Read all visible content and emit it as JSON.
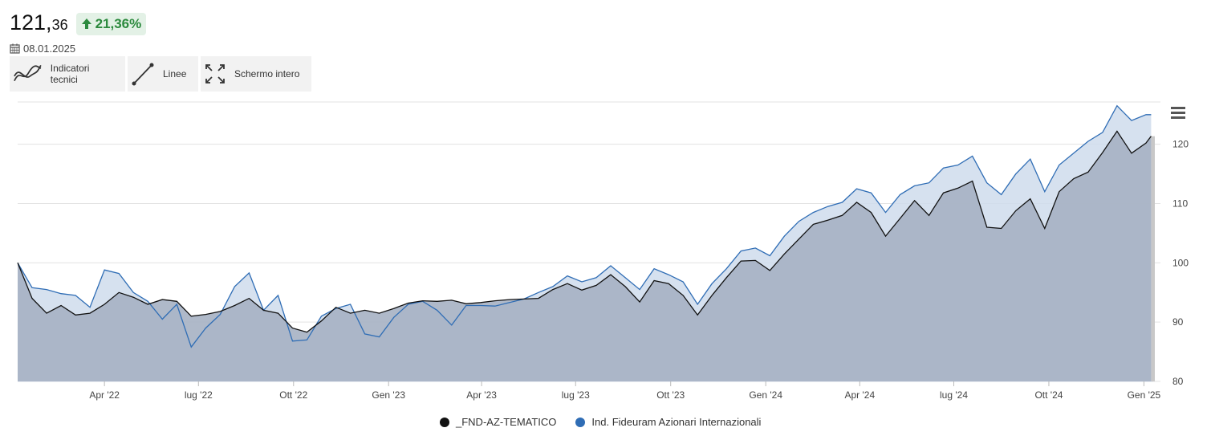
{
  "header": {
    "price_int": "121,",
    "price_dec": "36",
    "change": "21,36%",
    "date": "08.01.2025"
  },
  "toolbar": {
    "indicators_label": "Indicatori tecnici",
    "lines_label": "Linee",
    "fullscreen_label": "Schermo intero"
  },
  "colors": {
    "fund": "#111111",
    "index": "#2f6db5",
    "index_fill": "#cfdcec",
    "fund_fill": "#a6b1c3",
    "badge_text": "#2c8a3e",
    "badge_bg": "#e3f1e6"
  },
  "chart_data": {
    "type": "area",
    "title": "",
    "xlabel": "",
    "ylabel": "",
    "y_axis_position": "right",
    "ylim": [
      80,
      127
    ],
    "yticks": [
      80,
      90,
      100,
      110,
      120
    ],
    "xlim": [
      "2022-01-07",
      "2025-01-10"
    ],
    "xticks": [
      {
        "date": "2022-04-01",
        "label": "Apr '22"
      },
      {
        "date": "2022-07-01",
        "label": "lug '22"
      },
      {
        "date": "2022-10-01",
        "label": "Ott '22"
      },
      {
        "date": "2023-01-01",
        "label": "Gen '23"
      },
      {
        "date": "2023-04-01",
        "label": "Apr '23"
      },
      {
        "date": "2023-07-01",
        "label": "lug '23"
      },
      {
        "date": "2023-10-01",
        "label": "Ott '23"
      },
      {
        "date": "2024-01-01",
        "label": "Gen '24"
      },
      {
        "date": "2024-04-01",
        "label": "Apr '24"
      },
      {
        "date": "2024-07-01",
        "label": "lug '24"
      },
      {
        "date": "2024-10-01",
        "label": "Ott '24"
      },
      {
        "date": "2025-01-01",
        "label": "Gen '25"
      }
    ],
    "grid": true,
    "legend_position": "bottom-center",
    "series": [
      {
        "name": "_FND-AZ-TEMATICO",
        "points": [
          [
            "2022-01-07",
            100.0
          ],
          [
            "2022-01-21",
            94.0
          ],
          [
            "2022-02-04",
            91.5
          ],
          [
            "2022-02-18",
            92.8
          ],
          [
            "2022-03-04",
            91.2
          ],
          [
            "2022-03-18",
            91.5
          ],
          [
            "2022-04-01",
            93.0
          ],
          [
            "2022-04-15",
            95.0
          ],
          [
            "2022-04-29",
            94.2
          ],
          [
            "2022-05-13",
            93.0
          ],
          [
            "2022-05-27",
            93.8
          ],
          [
            "2022-06-10",
            93.5
          ],
          [
            "2022-06-24",
            91.0
          ],
          [
            "2022-07-08",
            91.3
          ],
          [
            "2022-07-22",
            91.8
          ],
          [
            "2022-08-05",
            92.8
          ],
          [
            "2022-08-19",
            94.0
          ],
          [
            "2022-09-02",
            92.0
          ],
          [
            "2022-09-16",
            91.5
          ],
          [
            "2022-09-30",
            89.0
          ],
          [
            "2022-10-14",
            88.3
          ],
          [
            "2022-10-28",
            90.2
          ],
          [
            "2022-11-11",
            92.5
          ],
          [
            "2022-11-25",
            91.5
          ],
          [
            "2022-12-09",
            92.0
          ],
          [
            "2022-12-23",
            91.5
          ],
          [
            "2023-01-06",
            92.3
          ],
          [
            "2023-01-20",
            93.2
          ],
          [
            "2023-02-03",
            93.6
          ],
          [
            "2023-02-17",
            93.5
          ],
          [
            "2023-03-03",
            93.7
          ],
          [
            "2023-03-17",
            93.1
          ],
          [
            "2023-03-31",
            93.3
          ],
          [
            "2023-04-14",
            93.6
          ],
          [
            "2023-04-28",
            93.8
          ],
          [
            "2023-05-12",
            93.9
          ],
          [
            "2023-05-26",
            94.0
          ],
          [
            "2023-06-09",
            95.5
          ],
          [
            "2023-06-23",
            96.5
          ],
          [
            "2023-07-07",
            95.4
          ],
          [
            "2023-07-21",
            96.2
          ],
          [
            "2023-08-04",
            98.0
          ],
          [
            "2023-08-18",
            96.0
          ],
          [
            "2023-09-01",
            93.4
          ],
          [
            "2023-09-15",
            97.0
          ],
          [
            "2023-09-29",
            96.5
          ],
          [
            "2023-10-13",
            94.5
          ],
          [
            "2023-10-27",
            91.2
          ],
          [
            "2023-11-10",
            94.5
          ],
          [
            "2023-11-24",
            97.5
          ],
          [
            "2023-12-08",
            100.3
          ],
          [
            "2023-12-22",
            100.4
          ],
          [
            "2024-01-05",
            98.7
          ],
          [
            "2024-01-19",
            101.5
          ],
          [
            "2024-02-02",
            104.0
          ],
          [
            "2024-02-16",
            106.5
          ],
          [
            "2024-03-01",
            107.2
          ],
          [
            "2024-03-15",
            108.0
          ],
          [
            "2024-03-29",
            110.2
          ],
          [
            "2024-04-12",
            108.5
          ],
          [
            "2024-04-26",
            104.5
          ],
          [
            "2024-05-10",
            107.5
          ],
          [
            "2024-05-24",
            110.5
          ],
          [
            "2024-06-07",
            108.0
          ],
          [
            "2024-06-21",
            111.8
          ],
          [
            "2024-07-05",
            112.6
          ],
          [
            "2024-07-19",
            113.8
          ],
          [
            "2024-08-02",
            106.0
          ],
          [
            "2024-08-16",
            105.8
          ],
          [
            "2024-08-30",
            108.8
          ],
          [
            "2024-09-13",
            110.8
          ],
          [
            "2024-09-27",
            105.8
          ],
          [
            "2024-10-11",
            112.0
          ],
          [
            "2024-10-25",
            114.2
          ],
          [
            "2024-11-08",
            115.3
          ],
          [
            "2024-11-22",
            118.6
          ],
          [
            "2024-12-06",
            122.2
          ],
          [
            "2024-12-20",
            118.5
          ],
          [
            "2025-01-03",
            120.2
          ],
          [
            "2025-01-08",
            121.36
          ]
        ]
      },
      {
        "name": "Ind. Fideuram Azionari Internazionali",
        "points": [
          [
            "2022-01-07",
            100.0
          ],
          [
            "2022-01-21",
            95.8
          ],
          [
            "2022-02-04",
            95.5
          ],
          [
            "2022-02-18",
            94.8
          ],
          [
            "2022-03-04",
            94.5
          ],
          [
            "2022-03-18",
            92.5
          ],
          [
            "2022-04-01",
            98.8
          ],
          [
            "2022-04-15",
            98.2
          ],
          [
            "2022-04-29",
            95.0
          ],
          [
            "2022-05-13",
            93.5
          ],
          [
            "2022-05-27",
            90.5
          ],
          [
            "2022-06-10",
            93.0
          ],
          [
            "2022-06-24",
            85.8
          ],
          [
            "2022-07-08",
            89.0
          ],
          [
            "2022-07-22",
            91.3
          ],
          [
            "2022-08-05",
            96.0
          ],
          [
            "2022-08-19",
            98.3
          ],
          [
            "2022-09-02",
            92.0
          ],
          [
            "2022-09-16",
            94.5
          ],
          [
            "2022-09-30",
            86.8
          ],
          [
            "2022-10-14",
            87.0
          ],
          [
            "2022-10-28",
            91.0
          ],
          [
            "2022-11-11",
            92.3
          ],
          [
            "2022-11-25",
            93.0
          ],
          [
            "2022-12-09",
            88.0
          ],
          [
            "2022-12-23",
            87.5
          ],
          [
            "2023-01-06",
            90.8
          ],
          [
            "2023-01-20",
            93.0
          ],
          [
            "2023-02-03",
            93.5
          ],
          [
            "2023-02-17",
            92.0
          ],
          [
            "2023-03-03",
            89.5
          ],
          [
            "2023-03-17",
            92.8
          ],
          [
            "2023-03-31",
            92.8
          ],
          [
            "2023-04-14",
            92.7
          ],
          [
            "2023-04-28",
            93.3
          ],
          [
            "2023-05-12",
            93.9
          ],
          [
            "2023-05-26",
            95.0
          ],
          [
            "2023-06-09",
            96.0
          ],
          [
            "2023-06-23",
            97.8
          ],
          [
            "2023-07-07",
            96.8
          ],
          [
            "2023-07-21",
            97.5
          ],
          [
            "2023-08-04",
            99.5
          ],
          [
            "2023-08-18",
            97.5
          ],
          [
            "2023-09-01",
            95.5
          ],
          [
            "2023-09-15",
            99.0
          ],
          [
            "2023-09-29",
            98.0
          ],
          [
            "2023-10-13",
            96.8
          ],
          [
            "2023-10-27",
            93.0
          ],
          [
            "2023-11-10",
            96.5
          ],
          [
            "2023-11-24",
            99.0
          ],
          [
            "2023-12-08",
            102.0
          ],
          [
            "2023-12-22",
            102.5
          ],
          [
            "2024-01-05",
            101.2
          ],
          [
            "2024-01-19",
            104.5
          ],
          [
            "2024-02-02",
            107.0
          ],
          [
            "2024-02-16",
            108.5
          ],
          [
            "2024-03-01",
            109.5
          ],
          [
            "2024-03-15",
            110.2
          ],
          [
            "2024-03-29",
            112.5
          ],
          [
            "2024-04-12",
            111.8
          ],
          [
            "2024-04-26",
            108.5
          ],
          [
            "2024-05-10",
            111.5
          ],
          [
            "2024-05-24",
            113.0
          ],
          [
            "2024-06-07",
            113.5
          ],
          [
            "2024-06-21",
            116.0
          ],
          [
            "2024-07-05",
            116.5
          ],
          [
            "2024-07-19",
            118.0
          ],
          [
            "2024-08-02",
            113.5
          ],
          [
            "2024-08-16",
            111.5
          ],
          [
            "2024-08-30",
            115.0
          ],
          [
            "2024-09-13",
            117.5
          ],
          [
            "2024-09-27",
            112.0
          ],
          [
            "2024-10-11",
            116.5
          ],
          [
            "2024-10-25",
            118.5
          ],
          [
            "2024-11-08",
            120.5
          ],
          [
            "2024-11-22",
            122.0
          ],
          [
            "2024-12-06",
            126.5
          ],
          [
            "2024-12-20",
            124.0
          ],
          [
            "2025-01-03",
            125.0
          ],
          [
            "2025-01-08",
            125.0
          ]
        ]
      }
    ]
  },
  "legend": {
    "items": [
      {
        "label": "_FND-AZ-TEMATICO",
        "color": "#111111"
      },
      {
        "label": "Ind. Fideuram Azionari Internazionali",
        "color": "#2f6db5"
      }
    ]
  }
}
